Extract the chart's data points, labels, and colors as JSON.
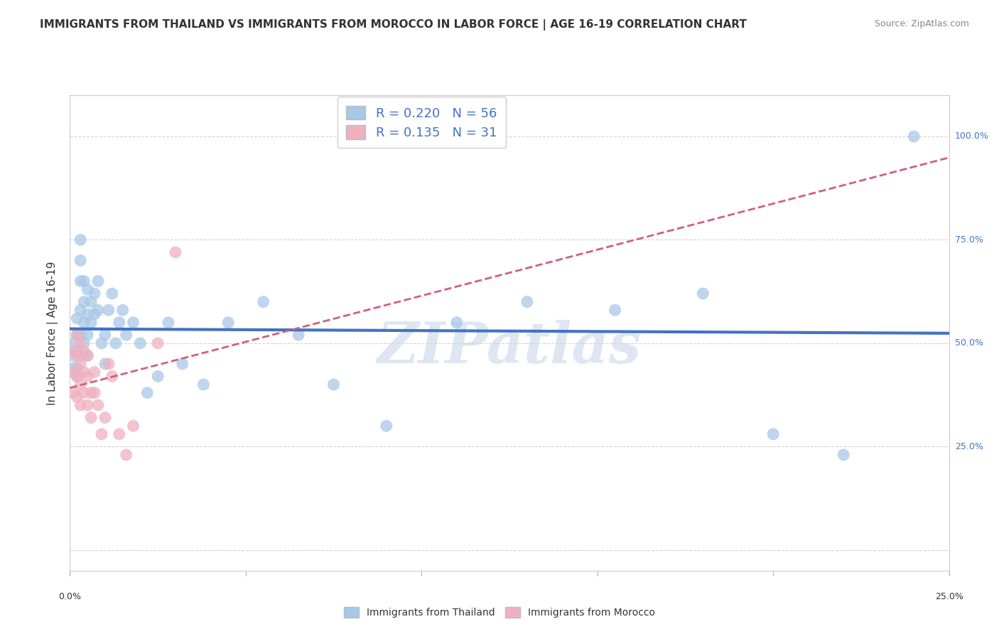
{
  "title": "IMMIGRANTS FROM THAILAND VS IMMIGRANTS FROM MOROCCO IN LABOR FORCE | AGE 16-19 CORRELATION CHART",
  "source": "Source: ZipAtlas.com",
  "ylabel": "In Labor Force | Age 16-19",
  "xlim": [
    0.0,
    0.25
  ],
  "ylim": [
    -0.05,
    1.1
  ],
  "legend1_label": "Immigrants from Thailand",
  "legend2_label": "Immigrants from Morocco",
  "R1": 0.22,
  "N1": 56,
  "R2": 0.135,
  "N2": 31,
  "color_thailand": "#a8c8e8",
  "color_thailand_line": "#4472c4",
  "color_morocco": "#f0b0c0",
  "color_morocco_line": "#d06080",
  "color_watermark": "#c8d8e8",
  "watermark_text": "ZIPatlas",
  "background_color": "#ffffff",
  "grid_color": "#cccccc",
  "title_color": "#333333",
  "legend_text_color": "#4472c4",
  "thailand_x": [
    0.001,
    0.001,
    0.001,
    0.002,
    0.002,
    0.002,
    0.002,
    0.002,
    0.003,
    0.003,
    0.003,
    0.003,
    0.003,
    0.003,
    0.004,
    0.004,
    0.004,
    0.004,
    0.005,
    0.005,
    0.005,
    0.005,
    0.006,
    0.006,
    0.007,
    0.007,
    0.008,
    0.008,
    0.009,
    0.01,
    0.01,
    0.011,
    0.012,
    0.013,
    0.014,
    0.015,
    0.016,
    0.018,
    0.02,
    0.022,
    0.025,
    0.028,
    0.032,
    0.038,
    0.045,
    0.055,
    0.065,
    0.075,
    0.09,
    0.11,
    0.13,
    0.155,
    0.18,
    0.2,
    0.22,
    0.24
  ],
  "thailand_y": [
    0.44,
    0.47,
    0.5,
    0.44,
    0.48,
    0.52,
    0.56,
    0.42,
    0.47,
    0.52,
    0.58,
    0.65,
    0.7,
    0.75,
    0.5,
    0.55,
    0.6,
    0.65,
    0.47,
    0.52,
    0.57,
    0.63,
    0.55,
    0.6,
    0.57,
    0.62,
    0.58,
    0.65,
    0.5,
    0.45,
    0.52,
    0.58,
    0.62,
    0.5,
    0.55,
    0.58,
    0.52,
    0.55,
    0.5,
    0.38,
    0.42,
    0.55,
    0.45,
    0.4,
    0.55,
    0.6,
    0.52,
    0.4,
    0.3,
    0.55,
    0.6,
    0.58,
    0.62,
    0.28,
    0.23,
    1.0
  ],
  "morocco_x": [
    0.001,
    0.001,
    0.001,
    0.002,
    0.002,
    0.002,
    0.002,
    0.003,
    0.003,
    0.003,
    0.003,
    0.004,
    0.004,
    0.004,
    0.005,
    0.005,
    0.005,
    0.006,
    0.006,
    0.007,
    0.007,
    0.008,
    0.009,
    0.01,
    0.011,
    0.012,
    0.014,
    0.016,
    0.018,
    0.025,
    0.03
  ],
  "morocco_y": [
    0.38,
    0.43,
    0.48,
    0.37,
    0.42,
    0.47,
    0.52,
    0.4,
    0.45,
    0.35,
    0.5,
    0.38,
    0.43,
    0.48,
    0.35,
    0.42,
    0.47,
    0.32,
    0.38,
    0.38,
    0.43,
    0.35,
    0.28,
    0.32,
    0.45,
    0.42,
    0.28,
    0.23,
    0.3,
    0.5,
    0.72
  ]
}
